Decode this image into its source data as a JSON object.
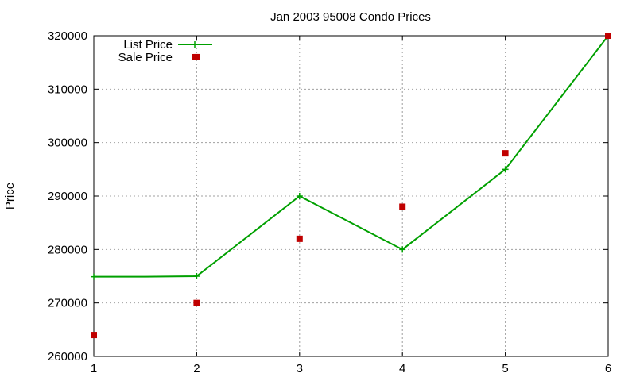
{
  "chart_data": {
    "type": "line",
    "title": "Jan 2003 95008 Condo Prices",
    "ylabel": "Price",
    "xlabel": "",
    "xlim": [
      1,
      6
    ],
    "ylim": [
      260000,
      320000
    ],
    "x_ticks": [
      1,
      2,
      3,
      4,
      5,
      6
    ],
    "y_ticks": [
      260000,
      270000,
      280000,
      290000,
      300000,
      310000,
      320000
    ],
    "grid": true,
    "legend_position": "top-left",
    "series": [
      {
        "name": "List Price",
        "style": "line-with-plus-markers",
        "color": "#00a000",
        "x": [
          1,
          1.5,
          2,
          3,
          4,
          5,
          6
        ],
        "y": [
          274900,
          274900,
          275000,
          290000,
          280000,
          295000,
          320000
        ]
      },
      {
        "name": "Sale Price",
        "style": "square-markers",
        "color": "#c00000",
        "x": [
          1,
          2,
          2,
          3,
          4,
          5,
          6
        ],
        "y": [
          264000,
          270000,
          316000,
          282000,
          288000,
          298000,
          320000
        ]
      }
    ]
  }
}
